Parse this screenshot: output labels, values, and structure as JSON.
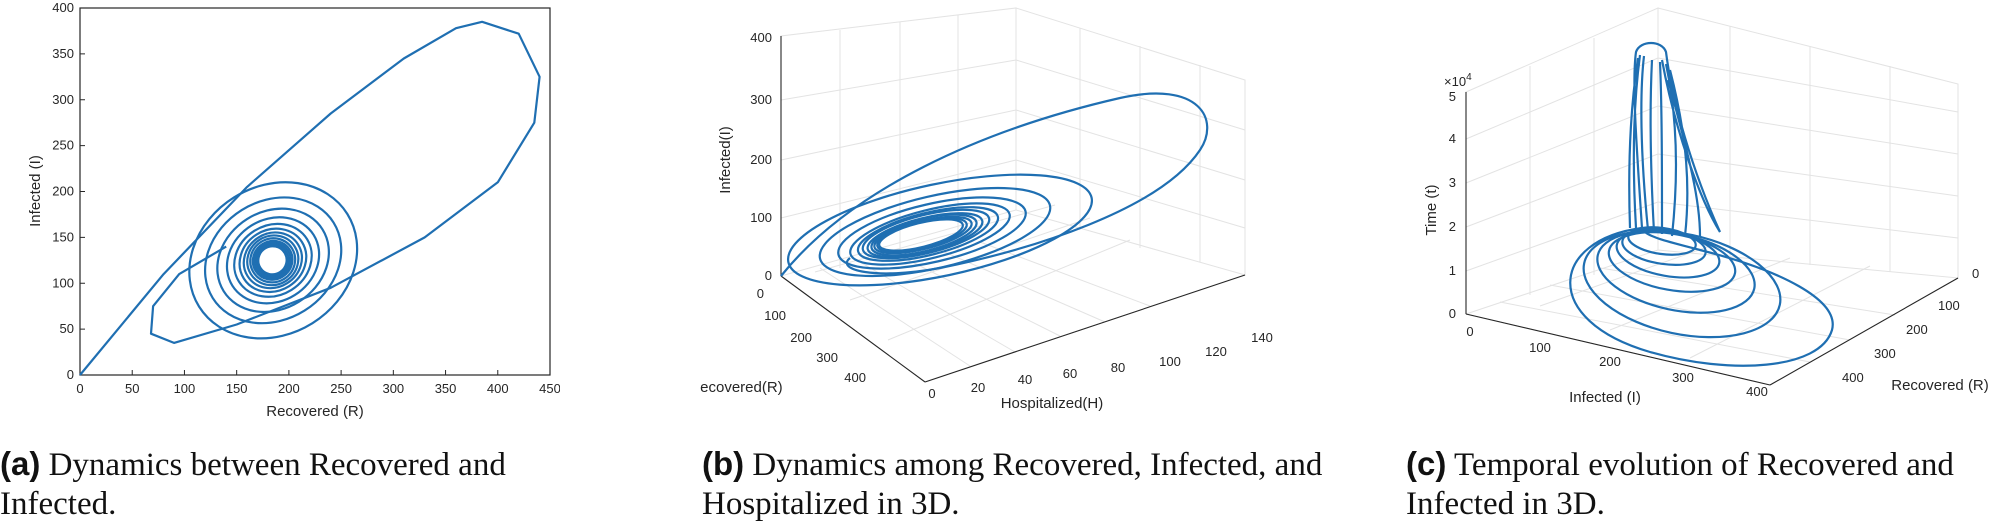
{
  "accent_color": "#1f6fb2",
  "chart_data": [
    {
      "type": "line",
      "subtype": "phase-portrait-2d",
      "xlabel": "Recovered (R)",
      "ylabel": "Infected (I)",
      "xlim": [
        0,
        450
      ],
      "ylim": [
        0,
        400
      ],
      "xticks": [
        "0",
        "50",
        "100",
        "150",
        "200",
        "250",
        "300",
        "350",
        "400",
        "450"
      ],
      "yticks": [
        "0",
        "50",
        "100",
        "150",
        "200",
        "250",
        "300",
        "350",
        "400"
      ],
      "series": [
        {
          "x": [
            0,
            80,
            160,
            240,
            310,
            360,
            385,
            420,
            440,
            435,
            400,
            330,
            240,
            150,
            90,
            68,
            70,
            95,
            140
          ],
          "y": [
            0,
            110,
            205,
            285,
            345,
            378,
            385,
            372,
            325,
            275,
            210,
            150,
            95,
            55,
            35,
            45,
            75,
            110,
            140
          ]
        }
      ],
      "spiral_center": [
        180,
        125
      ]
    },
    {
      "type": "line",
      "subtype": "phase-portrait-3d",
      "xlabel": "Hospitalized(H)",
      "ylabel": "Recovered(R)",
      "zlabel": "Infected(I)",
      "xticks": [
        "0",
        "20",
        "40",
        "60",
        "80",
        "100",
        "120",
        "140"
      ],
      "yticks": [
        "0",
        "100",
        "200",
        "300",
        "400"
      ],
      "zticks": [
        "0",
        "100",
        "200",
        "300",
        "400"
      ]
    },
    {
      "type": "line",
      "subtype": "trajectory-3d",
      "xlabel": "Infected (I)",
      "ylabel": "Recovered (R)",
      "zlabel": "Time (t)",
      "z_multiplier": "×10",
      "z_multiplier_exp": "4",
      "xticks": [
        "0",
        "100",
        "200",
        "300",
        "400"
      ],
      "yticks": [
        "0",
        "100",
        "200",
        "300",
        "400"
      ],
      "zticks": [
        "0",
        "1",
        "2",
        "3",
        "4",
        "5"
      ]
    }
  ],
  "captions": [
    {
      "tag": "(a)",
      "text": " Dynamics between Recovered and Infected."
    },
    {
      "tag": "(b)",
      "text": " Dynamics among Recovered, Infected, and Hospitalized in 3D."
    },
    {
      "tag": "(c)",
      "text": " Temporal evolution of Recovered and Infected in 3D."
    }
  ]
}
